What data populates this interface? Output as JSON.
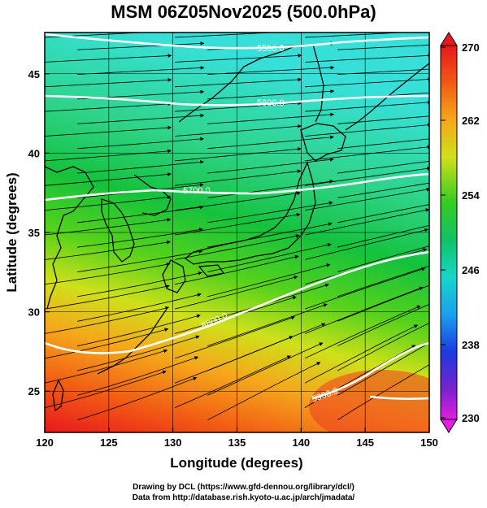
{
  "title": "MSM 06Z05Nov2025 (500.0hPa)",
  "axes": {
    "xlabel": "Longitude (degrees)",
    "ylabel": "Latitude  (degrees)",
    "x_ticks": [
      "120",
      "125",
      "130",
      "135",
      "140",
      "145",
      "150"
    ],
    "y_ticks": [
      "25",
      "30",
      "35",
      "40",
      "45"
    ],
    "xlim": [
      120,
      150
    ],
    "ylim": [
      22.4,
      47.6
    ]
  },
  "colorbar": {
    "min": 230,
    "max": 270,
    "tick_labels": [
      "270",
      "262",
      "254",
      "246",
      "238",
      "230"
    ]
  },
  "contours": [
    {
      "label": "5500.0"
    },
    {
      "label": "5600.0"
    },
    {
      "label": "5700.0"
    },
    {
      "label": "5800.0"
    },
    {
      "label": "5900.0"
    }
  ],
  "credits": {
    "line1": "Drawing by DCL (https://www.gfd-dennou.org/library/dcl/)",
    "line2": "Data from http://database.rish.kyoto-u.ac.jp/arch/jmadata/"
  },
  "colors": {
    "contour": "#ffffff",
    "streamline": "#000000",
    "coastline": "#000000"
  }
}
